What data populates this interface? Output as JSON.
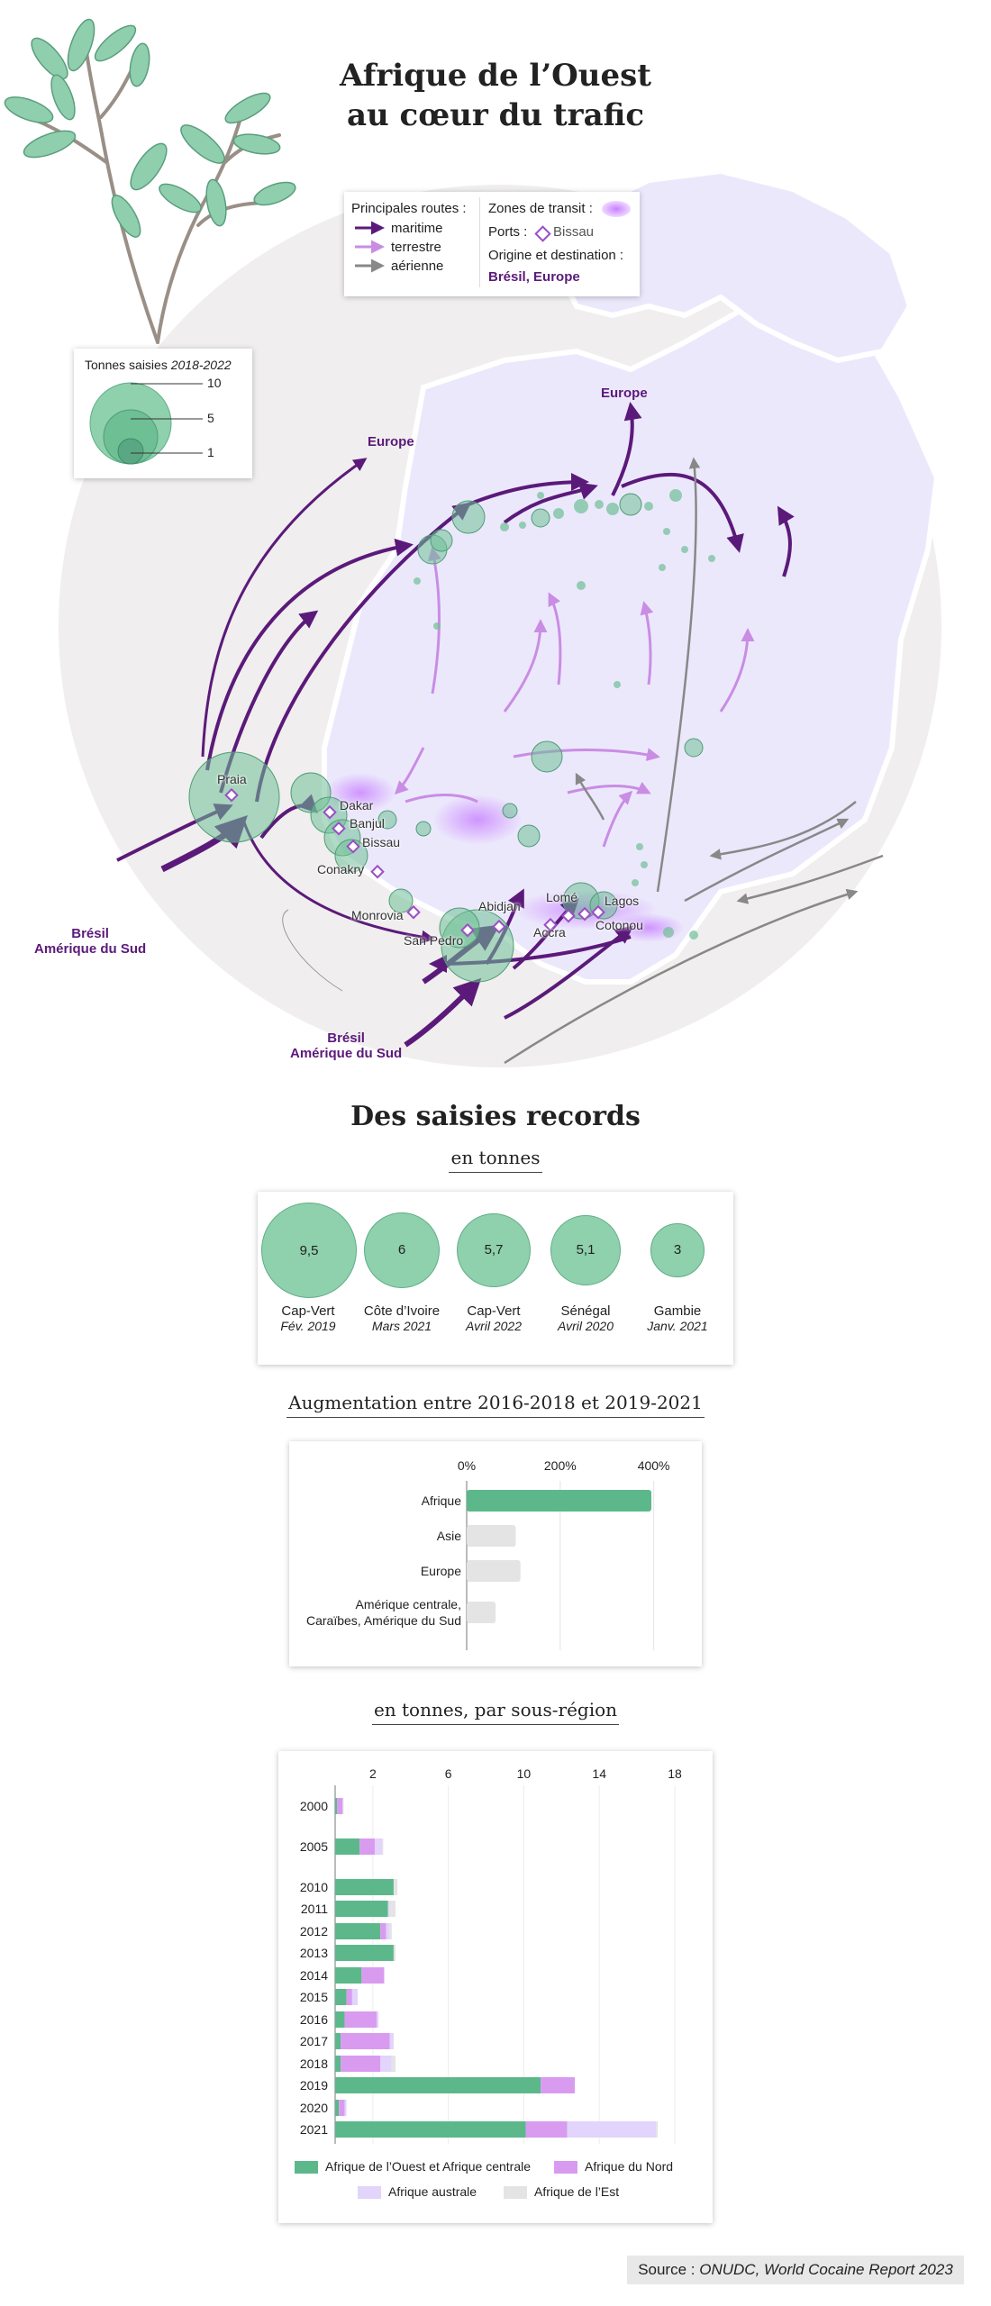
{
  "title_line1": "Afrique de l’Ouest",
  "title_line2": "au cœur du trafic",
  "legend": {
    "routes_title": "Principales routes :",
    "routes": [
      "maritime",
      "terrestre",
      "aérienne"
    ],
    "transit": "Zones de transit :",
    "ports_label": "Ports :",
    "ports_example": "Bissau",
    "origin_title": "Origine et destination :",
    "origin_value": "Brésil, Europe"
  },
  "size_legend": {
    "title": "Tonnes saisies",
    "period": "2018-2022",
    "values": [
      "10",
      "5",
      "1"
    ]
  },
  "map_labels": {
    "europe_1": "Europe",
    "europe_2": "Europe",
    "bresil_1": "Brésil\nAmérique du Sud",
    "bresil_2": "Brésil\nAmérique du Sud",
    "ports": [
      "Praia",
      "Dakar",
      "Banjul",
      "Bissau",
      "Conakry",
      "Monrovia",
      "Abidjan",
      "San Pedro",
      "Lomé",
      "Lagos",
      "Accra",
      "Cotonou"
    ]
  },
  "records": {
    "title": "Des saisies records",
    "unit": "en tonnes",
    "items": [
      {
        "value": "9,5",
        "num": 9.5,
        "country": "Cap-Vert",
        "date": "Fév. 2019"
      },
      {
        "value": "6",
        "num": 6,
        "country": "Côte d’Ivoire",
        "date": "Mars 2021"
      },
      {
        "value": "5,7",
        "num": 5.7,
        "country": "Cap-Vert",
        "date": "Avril 2022"
      },
      {
        "value": "5,1",
        "num": 5.1,
        "country": "Sénégal",
        "date": "Avril 2020"
      },
      {
        "value": "3",
        "num": 3,
        "country": "Gambie",
        "date": "Janv. 2021"
      }
    ]
  },
  "chart_data": [
    {
      "type": "bar",
      "title": "Augmentation entre 2016-2018 et 2019-2021",
      "orientation": "horizontal",
      "categories": [
        "Afrique",
        "Asie",
        "Europe",
        "Amérique centrale,\nCaraïbes, Amérique du Sud"
      ],
      "values": [
        395,
        105,
        115,
        62
      ],
      "colors": [
        "#5cb88a",
        "#e4e4e4",
        "#e4e4e4",
        "#e4e4e4"
      ],
      "xticks": [
        "0%",
        "200%",
        "400%"
      ],
      "xlim": [
        0,
        420
      ]
    },
    {
      "type": "bar",
      "stacked": true,
      "orientation": "horizontal",
      "title": "en tonnes, par sous-région",
      "categories": [
        "2000",
        "2005",
        "2010",
        "2011",
        "2012",
        "2013",
        "2014",
        "2015",
        "2016",
        "2017",
        "2018",
        "2019",
        "2020",
        "2021"
      ],
      "xticks": [
        "2",
        "6",
        "10",
        "14",
        "18"
      ],
      "xlim": [
        0,
        19.5
      ],
      "series": [
        {
          "name": "Afrique de l’Ouest et Afrique centrale",
          "color": "#5cb88a",
          "values": [
            0.1,
            1.3,
            3.1,
            2.8,
            2.4,
            3.1,
            1.4,
            0.6,
            0.5,
            0.3,
            0.3,
            10.9,
            0.2,
            10.1
          ]
        },
        {
          "name": "Afrique du Nord",
          "color": "#d99bf0",
          "values": [
            0.3,
            0.8,
            0.0,
            0.0,
            0.3,
            0.0,
            1.2,
            0.3,
            1.7,
            2.6,
            2.1,
            1.8,
            0.3,
            2.2
          ]
        },
        {
          "name": "Afrique australe",
          "color": "#e2d4fb",
          "values": [
            0.0,
            0.4,
            0.0,
            0.1,
            0.2,
            0.0,
            0.0,
            0.3,
            0.1,
            0.2,
            0.6,
            0.0,
            0.1,
            4.7
          ]
        },
        {
          "name": "Afrique de l’Est",
          "color": "#e4e4e4",
          "values": [
            0.05,
            0.05,
            0.2,
            0.3,
            0.1,
            0.1,
            0.0,
            0.0,
            0.0,
            0.0,
            0.2,
            0.0,
            0.0,
            0.1
          ]
        }
      ]
    }
  ],
  "source_prefix": "Source : ",
  "source_text": "ONUDC, World Cocaine Report 2023"
}
